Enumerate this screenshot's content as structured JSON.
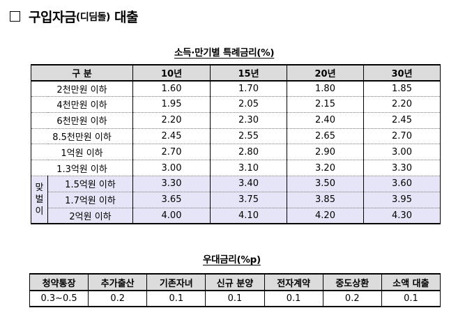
{
  "title": {
    "main": "구입자금",
    "paren": "(디딤돌)",
    "suffix": "대출"
  },
  "rate_table": {
    "title": "소득·만기별 특례금리(%)",
    "headers": [
      "구 분",
      "10년",
      "15년",
      "20년",
      "30년"
    ],
    "rows": [
      {
        "label": "2천만원 이하",
        "values": [
          "1.60",
          "1.70",
          "1.80",
          "1.85"
        ]
      },
      {
        "label": "4천만원 이하",
        "values": [
          "1.95",
          "2.05",
          "2.15",
          "2.20"
        ]
      },
      {
        "label": "6천만원 이하",
        "values": [
          "2.20",
          "2.30",
          "2.40",
          "2.45"
        ]
      },
      {
        "label": "8.5천만원 이하",
        "values": [
          "2.45",
          "2.55",
          "2.65",
          "2.70"
        ]
      },
      {
        "label": "1억원 이하",
        "values": [
          "2.70",
          "2.80",
          "2.90",
          "3.00"
        ]
      },
      {
        "label": "1.3억원 이하",
        "values": [
          "3.00",
          "3.10",
          "3.20",
          "3.30"
        ]
      }
    ],
    "couple_label": [
      "맞",
      "벌",
      "이"
    ],
    "couple_rows": [
      {
        "label": "1.5억원 이하",
        "values": [
          "3.30",
          "3.40",
          "3.50",
          "3.60"
        ]
      },
      {
        "label": "1.7억원 이하",
        "values": [
          "3.65",
          "3.75",
          "3.85",
          "3.95"
        ]
      },
      {
        "label": "2억원 이하",
        "values": [
          "4.00",
          "4.10",
          "4.20",
          "4.30"
        ]
      }
    ]
  },
  "pref_table": {
    "title": "우대금리(%p)",
    "headers": [
      "청약통장",
      "추가출산",
      "기존자녀",
      "신규 분양",
      "전자계약",
      "중도상환",
      "소액 대출"
    ],
    "values": [
      "0.3~0.5",
      "0.2",
      "0.1",
      "0.1",
      "0.1",
      "0.2",
      "0.1"
    ]
  }
}
